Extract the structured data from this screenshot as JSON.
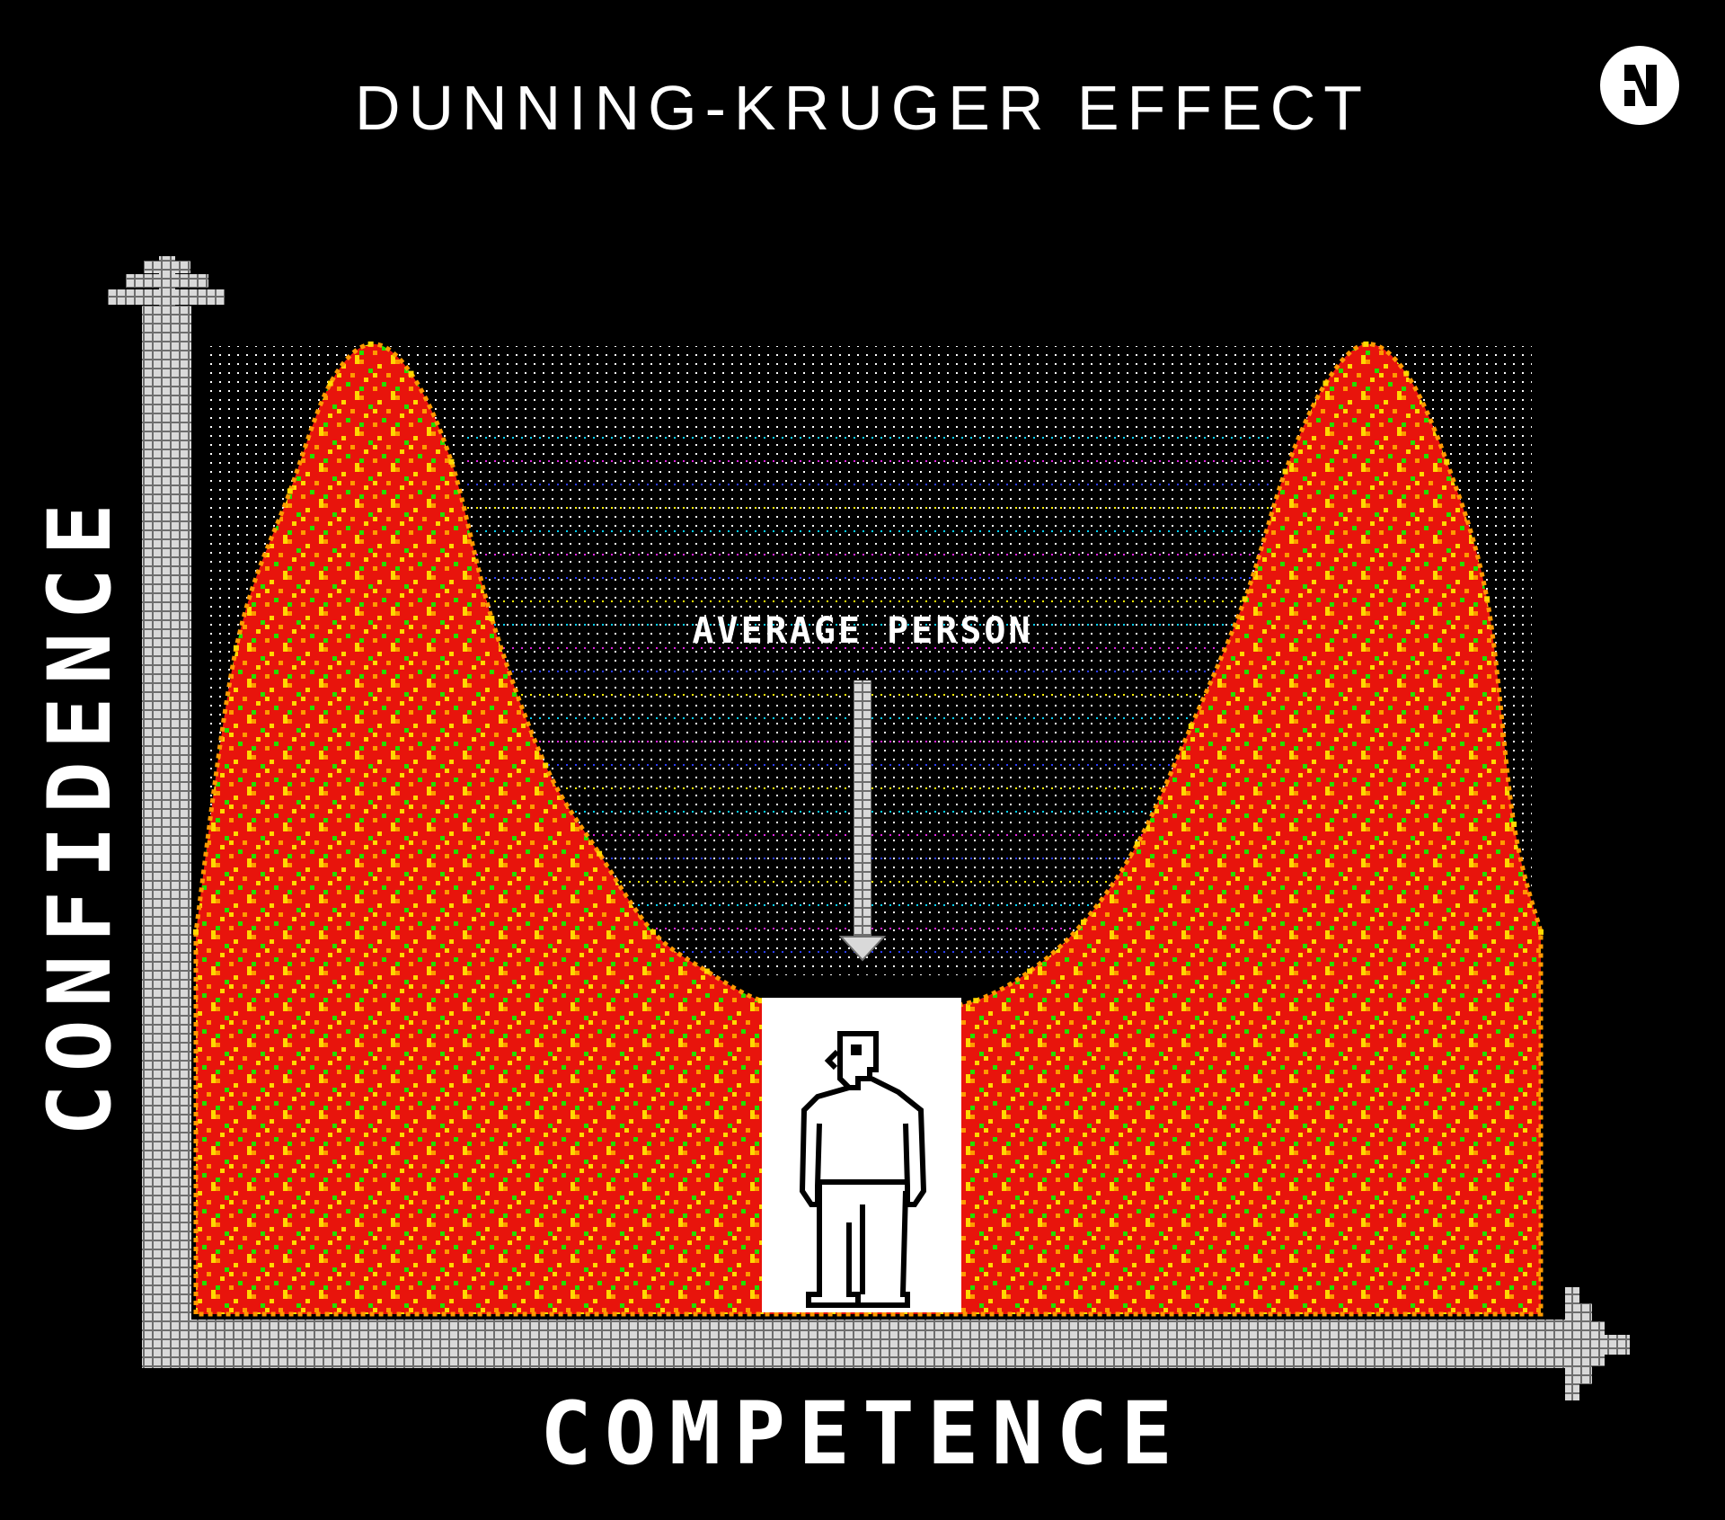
{
  "title": "DUNNING-KRUGER EFFECT",
  "colors": {
    "background": "#000000",
    "curve_fill": "#e8140c",
    "speckle_orange": "#ff9a00",
    "speckle_yellow": "#ffd800",
    "speckle_green": "#22e000",
    "axis_fill": "#d9d9d9",
    "axis_grid": "#6e6e6e",
    "dot_white": "#ffffff",
    "dot_cyan": "#00d0ff",
    "dot_magenta": "#e020e0",
    "dot_blue": "#2a3cff",
    "dot_yellow": "#ffee00"
  },
  "logo": {
    "icon": "n-logo-icon"
  },
  "chart_data": {
    "type": "area",
    "title": "DUNNING-KRUGER EFFECT",
    "xlabel": "COMPETENCE",
    "ylabel": "CONFIDENCE",
    "grid": false,
    "legend": "none",
    "xlim": [
      0,
      1
    ],
    "ylim": [
      0,
      1
    ],
    "x": [
      0.0,
      0.03,
      0.07,
      0.1,
      0.13,
      0.16,
      0.19,
      0.22,
      0.26,
      0.3,
      0.34,
      0.38,
      0.42,
      0.46,
      0.5,
      0.54,
      0.58,
      0.62,
      0.66,
      0.7,
      0.74,
      0.78,
      0.81,
      0.84,
      0.87,
      0.9,
      0.93,
      0.96,
      0.98,
      1.0
    ],
    "y": [
      0.39,
      0.68,
      0.84,
      0.95,
      0.99,
      0.96,
      0.87,
      0.71,
      0.56,
      0.47,
      0.39,
      0.35,
      0.32,
      0.31,
      0.3,
      0.31,
      0.32,
      0.35,
      0.4,
      0.48,
      0.6,
      0.73,
      0.86,
      0.95,
      0.99,
      0.96,
      0.87,
      0.73,
      0.5,
      0.39
    ],
    "annotations": [
      {
        "text": "AVERAGE PERSON",
        "x": 0.5,
        "y": 0.3,
        "icon": "person-icon"
      }
    ]
  }
}
